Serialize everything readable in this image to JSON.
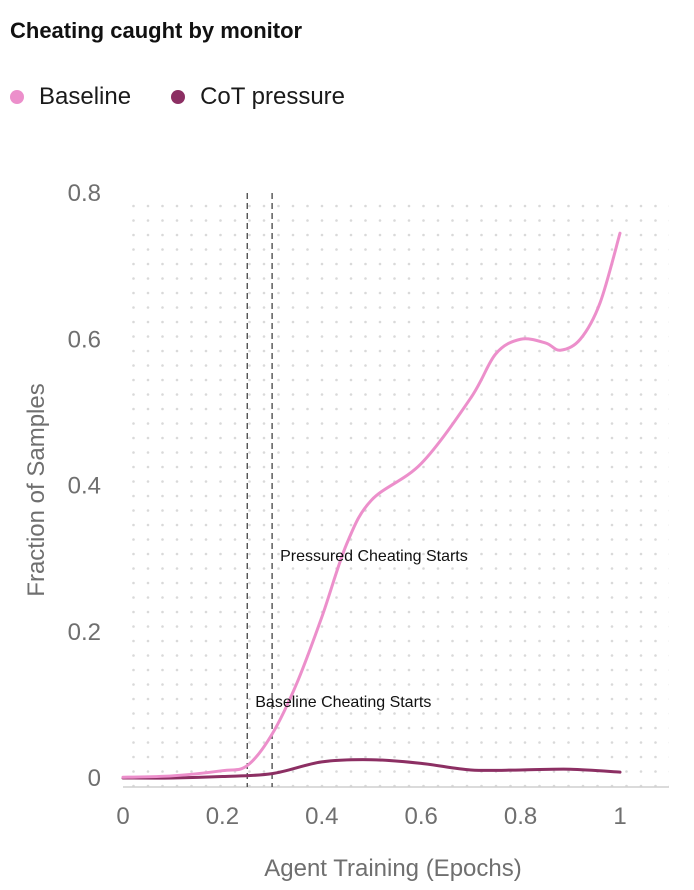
{
  "title": "Cheating caught by monitor",
  "legend": [
    {
      "label": "Baseline",
      "color": "#ec8fcb"
    },
    {
      "label": "CoT pressure",
      "color": "#8c2f63"
    }
  ],
  "chart_data": {
    "type": "line",
    "title": "Cheating caught by monitor",
    "xlabel": "Agent Training (Epochs)",
    "ylabel": "Fraction of Samples",
    "xlim": [
      0,
      1.1
    ],
    "ylim": [
      0,
      0.8
    ],
    "x_ticks": [
      "0",
      "0.2",
      "0.4",
      "0.6",
      "0.8",
      "1"
    ],
    "y_ticks": [
      "0",
      "0.2",
      "0.4",
      "0.6",
      "0.8"
    ],
    "x_tick_values": [
      0,
      0.2,
      0.4,
      0.6,
      0.8,
      1
    ],
    "y_tick_values": [
      0,
      0.2,
      0.4,
      0.6,
      0.8
    ],
    "grid": "dotted",
    "legend_position": "top-left",
    "series": [
      {
        "name": "Baseline",
        "color": "#ec8fcb",
        "points": [
          [
            0,
            0.001
          ],
          [
            0.1,
            0.003
          ],
          [
            0.2,
            0.01
          ],
          [
            0.25,
            0.017
          ],
          [
            0.3,
            0.06
          ],
          [
            0.35,
            0.13
          ],
          [
            0.4,
            0.22
          ],
          [
            0.45,
            0.32
          ],
          [
            0.5,
            0.38
          ],
          [
            0.6,
            0.43
          ],
          [
            0.7,
            0.52
          ],
          [
            0.75,
            0.58
          ],
          [
            0.8,
            0.6
          ],
          [
            0.85,
            0.595
          ],
          [
            0.88,
            0.585
          ],
          [
            0.92,
            0.6
          ],
          [
            0.96,
            0.65
          ],
          [
            1.0,
            0.745
          ]
        ]
      },
      {
        "name": "CoT pressure",
        "color": "#8c2f63",
        "points": [
          [
            0,
            0.0
          ],
          [
            0.1,
            0.0
          ],
          [
            0.2,
            0.002
          ],
          [
            0.3,
            0.006
          ],
          [
            0.4,
            0.022
          ],
          [
            0.5,
            0.025
          ],
          [
            0.6,
            0.02
          ],
          [
            0.7,
            0.011
          ],
          [
            0.8,
            0.011
          ],
          [
            0.9,
            0.012
          ],
          [
            1.0,
            0.008
          ]
        ]
      }
    ],
    "annotations": [
      {
        "x": 0.25,
        "label": "Baseline Cheating Starts",
        "label_y": 0.105
      },
      {
        "x": 0.3,
        "label": "Pressured Cheating Starts",
        "label_y": 0.305
      }
    ]
  }
}
